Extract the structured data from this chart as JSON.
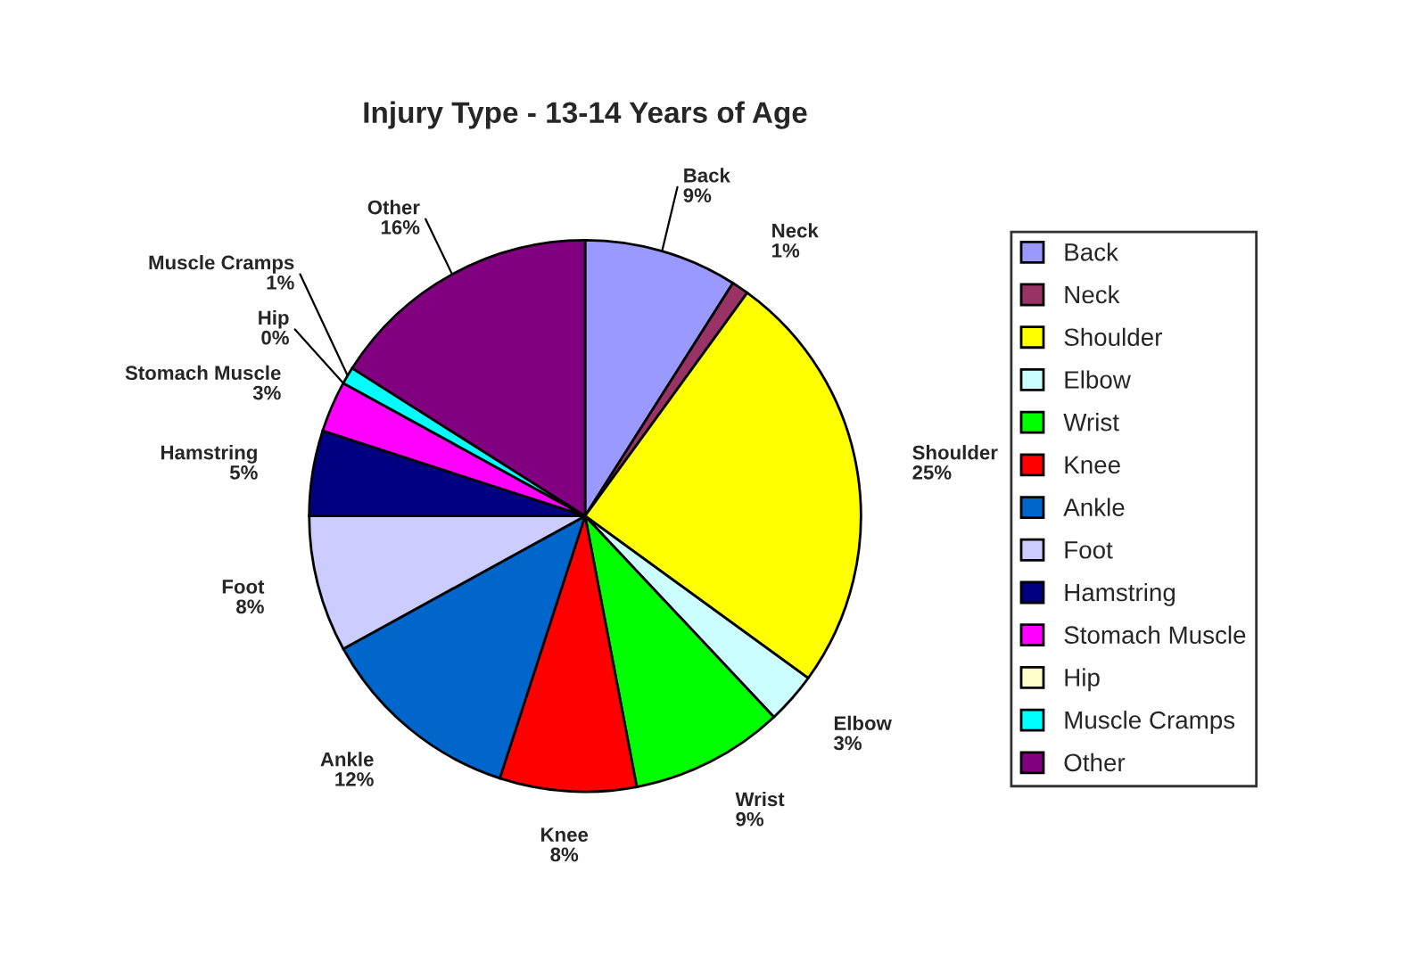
{
  "chart_data": {
    "type": "pie",
    "title": "Injury Type - 13-14 Years of Age",
    "categories": [
      "Back",
      "Neck",
      "Shoulder",
      "Elbow",
      "Wrist",
      "Knee",
      "Ankle",
      "Foot",
      "Hamstring",
      "Stomach Muscle",
      "Hip",
      "Muscle Cramps",
      "Other"
    ],
    "values": [
      9,
      1,
      25,
      3,
      9,
      8,
      12,
      8,
      5,
      3,
      0,
      1,
      16
    ],
    "value_labels": [
      "9%",
      "1%",
      "25%",
      "3%",
      "9%",
      "8%",
      "12%",
      "8%",
      "5%",
      "3%",
      "0%",
      "1%",
      "16%"
    ],
    "colors": [
      "#9999ff",
      "#993366",
      "#ffff00",
      "#ccffff",
      "#00ff00",
      "#ff0000",
      "#0066cc",
      "#ccccff",
      "#000080",
      "#ff00ff",
      "#ffffcc",
      "#00ffff",
      "#800080"
    ],
    "legend": "right"
  }
}
